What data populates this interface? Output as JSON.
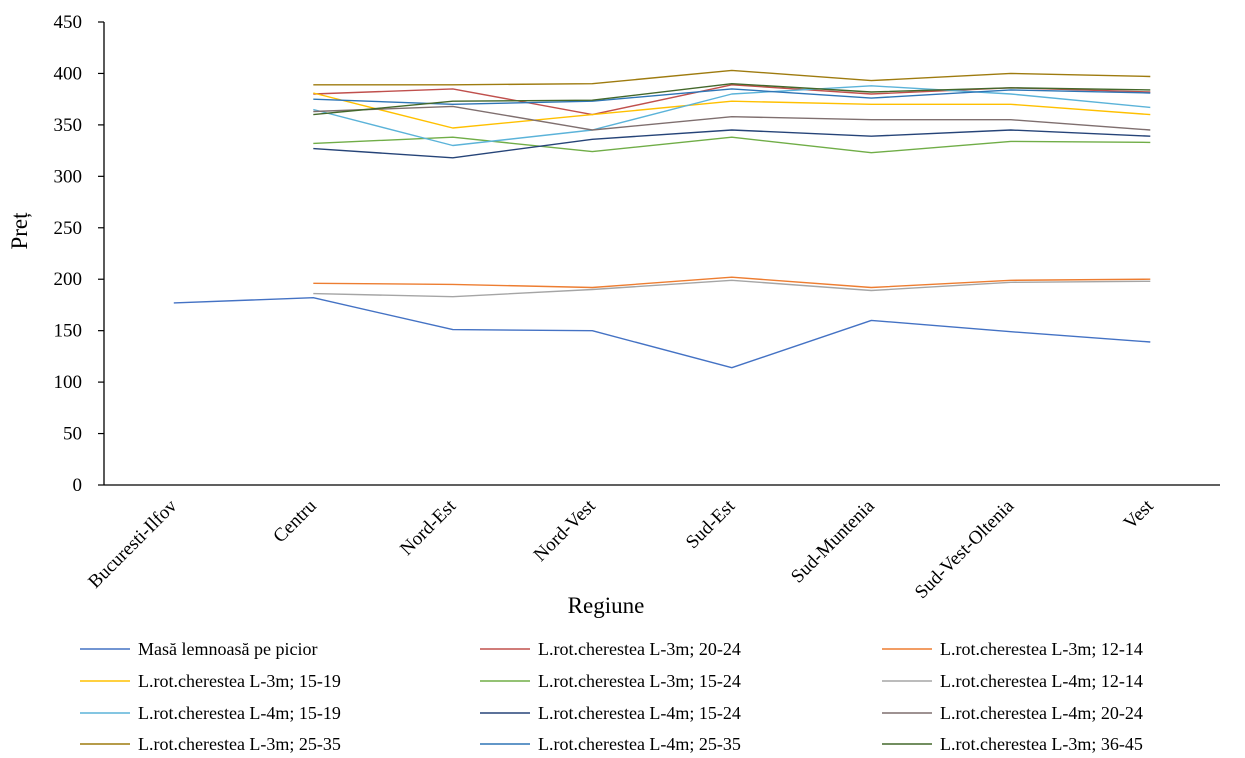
{
  "chart_data": {
    "type": "line",
    "title": "",
    "xlabel": "Regiune",
    "ylabel": "Preț",
    "ylim": [
      0,
      450
    ],
    "yticks": [
      0,
      50,
      100,
      150,
      200,
      250,
      300,
      350,
      400,
      450
    ],
    "grid": false,
    "legend_position": "bottom",
    "categories": [
      "Bucuresti-Ilfov",
      "Centru",
      "Nord-Est",
      "Nord-Vest",
      "Sud-Est",
      "Sud-Muntenia",
      "Sud-Vest-Oltenia",
      "Vest"
    ],
    "series": [
      {
        "name": "Masă lemnoasă pe picior",
        "color": "#4472C4",
        "values": [
          177,
          182,
          151,
          150,
          114,
          160,
          149,
          139
        ]
      },
      {
        "name": "L.rot.cherestea L-3m; 20-24",
        "color": "#C0504D",
        "values": [
          null,
          380,
          385,
          360,
          389,
          380,
          386,
          382
        ]
      },
      {
        "name": "L.rot.cherestea L-3m; 12-14",
        "color": "#ED7D31",
        "values": [
          null,
          196,
          195,
          192,
          202,
          192,
          199,
          200
        ]
      },
      {
        "name": "L.rot.cherestea L-3m; 15-19",
        "color": "#FFC000",
        "values": [
          null,
          381,
          347,
          360,
          373,
          370,
          370,
          360
        ]
      },
      {
        "name": "L.rot.cherestea L-3m; 15-24",
        "color": "#70AD47",
        "values": [
          null,
          332,
          338,
          324,
          338,
          323,
          334,
          333
        ]
      },
      {
        "name": "L.rot.cherestea L-4m; 12-14",
        "color": "#A5A5A5",
        "values": [
          null,
          186,
          183,
          190,
          199,
          189,
          197,
          198
        ]
      },
      {
        "name": "L.rot.cherestea L-4m; 15-19",
        "color": "#5BB3D9",
        "values": [
          null,
          365,
          330,
          345,
          380,
          388,
          380,
          367
        ]
      },
      {
        "name": "L.rot.cherestea L-4m; 15-24",
        "color": "#264478",
        "values": [
          null,
          327,
          318,
          336,
          345,
          339,
          345,
          339
        ]
      },
      {
        "name": "L.rot.cherestea L-4m; 20-24",
        "color": "#7F6F6F",
        "values": [
          null,
          363,
          368,
          345,
          358,
          355,
          355,
          345
        ]
      },
      {
        "name": "L.rot.cherestea L-3m; 25-35",
        "color": "#9E7B0F",
        "values": [
          null,
          389,
          389,
          390,
          403,
          393,
          400,
          397
        ]
      },
      {
        "name": "L.rot.cherestea L-4m; 25-35",
        "color": "#2E75B6",
        "values": [
          null,
          375,
          370,
          373,
          385,
          376,
          384,
          381
        ]
      },
      {
        "name": "L.rot.cherestea L-3m; 36-45",
        "color": "#43682B",
        "values": [
          null,
          360,
          373,
          374,
          390,
          382,
          386,
          384
        ]
      }
    ]
  }
}
